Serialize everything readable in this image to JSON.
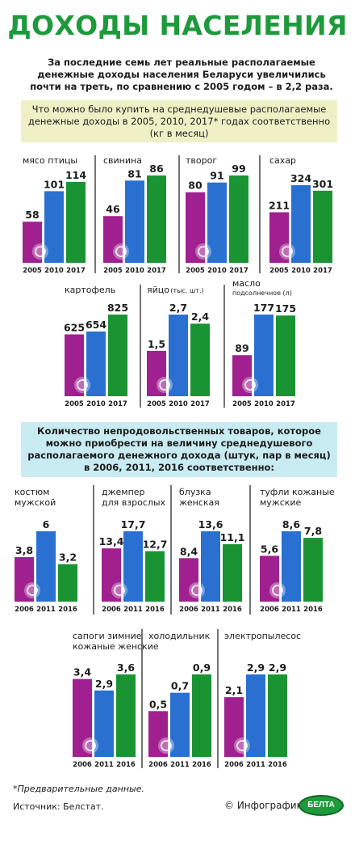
{
  "title": "ДОХОДЫ НАСЕЛЕНИЯ",
  "intro": "За последние семь лет реальные располагаемые денежные доходы населения Беларуси увеличились почти на треть, по сравнению с 2005 годом – в 2,2 раза.",
  "section1_heading": "Что можно было купить на среднедушевые располагаемые денежные доходы в 2005, 2010, 2017* годах соответственно (кг в месяц)",
  "section2_heading": "Количество непродовольственных товаров, которое можно приобрести на величину среднедушевого располагаемого денежного дохода (штук, пар в месяц) в 2006, 2011, 2016 соответственно:",
  "colors": {
    "first": "#a0208f",
    "second": "#2a70d0",
    "third": "#1a9432",
    "title": "#1e9a3c"
  },
  "footnote": "*Предварительные данные.",
  "source": "Источник: Белстат.",
  "credit": "© Инфографика",
  "logo_text": "БЕЛТА",
  "chart_data": [
    {
      "type": "bar",
      "title": "мясо птицы",
      "categories": [
        "2005",
        "2010",
        "2017"
      ],
      "values": [
        58,
        101,
        114
      ],
      "labels": [
        "58",
        "101",
        "114"
      ],
      "icon": "chicken-icon"
    },
    {
      "type": "bar",
      "title": "свинина",
      "categories": [
        "2005",
        "2010",
        "2017"
      ],
      "values": [
        46,
        81,
        86
      ],
      "labels": [
        "46",
        "81",
        "86"
      ],
      "icon": "pig-icon"
    },
    {
      "type": "bar",
      "title": "творог",
      "categories": [
        "2005",
        "2010",
        "2017"
      ],
      "values": [
        80,
        91,
        99
      ],
      "labels": [
        "80",
        "91",
        "99"
      ],
      "icon": "cottage-cheese-icon"
    },
    {
      "type": "bar",
      "title": "сахар",
      "categories": [
        "2005",
        "2010",
        "2017"
      ],
      "values": [
        211,
        324,
        301
      ],
      "labels": [
        "211",
        "324",
        "301"
      ],
      "icon": "sugar-icon"
    },
    {
      "type": "bar",
      "title": "картофель",
      "categories": [
        "2005",
        "2010",
        "2017"
      ],
      "values": [
        625,
        654,
        825
      ],
      "labels": [
        "625",
        "654",
        "825"
      ],
      "icon": "potato-icon"
    },
    {
      "type": "bar",
      "title": "яйцо",
      "subtitle": "(тыс. шт.)",
      "categories": [
        "2005",
        "2010",
        "2017"
      ],
      "values": [
        1.5,
        2.7,
        2.4
      ],
      "labels": [
        "1,5",
        "2,7",
        "2,4"
      ],
      "icon": "egg-icon"
    },
    {
      "type": "bar",
      "title": "масло",
      "subtitle": "подсолнечное (л)",
      "categories": [
        "2005",
        "2010",
        "2017"
      ],
      "values": [
        89,
        177,
        175
      ],
      "labels": [
        "89",
        "177",
        "175"
      ],
      "icon": "oil-drop-icon"
    },
    {
      "type": "bar",
      "title": "костюм мужской",
      "categories": [
        "2006",
        "2011",
        "2016"
      ],
      "values": [
        3.8,
        6,
        3.2
      ],
      "labels": [
        "3,8",
        "6",
        "3,2"
      ],
      "icon": "suit-icon"
    },
    {
      "type": "bar",
      "title": "джемпер для взрослых",
      "categories": [
        "2006",
        "2011",
        "2016"
      ],
      "values": [
        13.4,
        17.7,
        12.7
      ],
      "labels": [
        "13,4",
        "17,7",
        "12,7"
      ],
      "icon": "sweater-icon"
    },
    {
      "type": "bar",
      "title": "блузка женская",
      "categories": [
        "2006",
        "2011",
        "2016"
      ],
      "values": [
        8.4,
        13.6,
        11.1
      ],
      "labels": [
        "8,4",
        "13,6",
        "11,1"
      ],
      "icon": "blouse-icon"
    },
    {
      "type": "bar",
      "title": "туфли кожаные мужские",
      "categories": [
        "2006",
        "2011",
        "2016"
      ],
      "values": [
        5.6,
        8.6,
        7.8
      ],
      "labels": [
        "5,6",
        "8,6",
        "7,8"
      ],
      "icon": "shoe-icon"
    },
    {
      "type": "bar",
      "title": "сапоги зимние кожаные женские",
      "categories": [
        "2006",
        "2011",
        "2016"
      ],
      "values": [
        3.4,
        2.9,
        3.6
      ],
      "labels": [
        "3,4",
        "2,9",
        "3,6"
      ],
      "icon": "boot-icon"
    },
    {
      "type": "bar",
      "title": "холодильник",
      "categories": [
        "2006",
        "2011",
        "2016"
      ],
      "values": [
        0.5,
        0.7,
        0.9
      ],
      "labels": [
        "0,5",
        "0,7",
        "0,9"
      ],
      "icon": "snowflake-icon"
    },
    {
      "type": "bar",
      "title": "электропылесос",
      "categories": [
        "2006",
        "2011",
        "2016"
      ],
      "values": [
        2.1,
        2.9,
        2.9
      ],
      "labels": [
        "2,1",
        "2,9",
        "2,9"
      ],
      "icon": "vacuum-icon"
    }
  ]
}
